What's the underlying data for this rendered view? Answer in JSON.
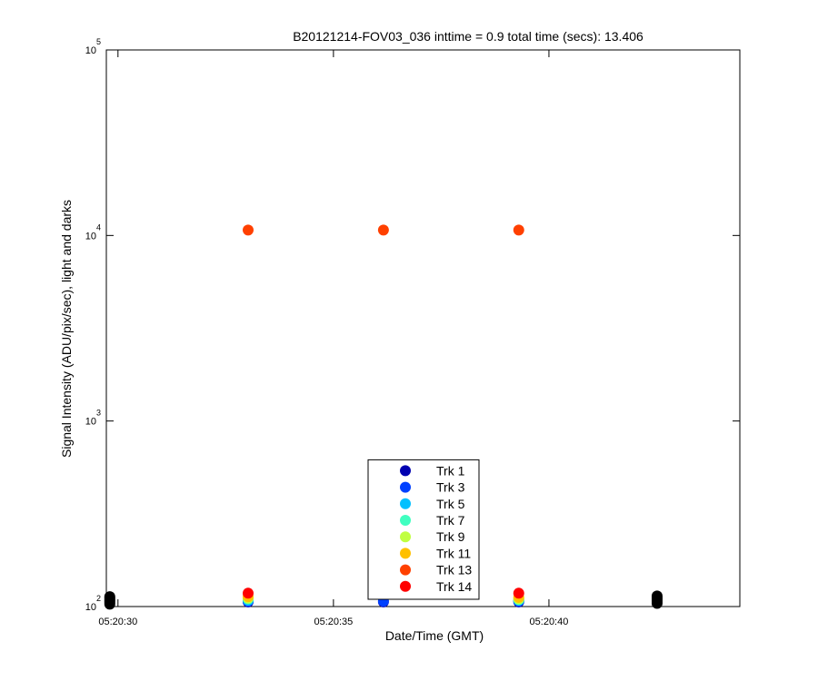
{
  "chart_data": {
    "type": "scatter",
    "title": "B20121214-FOV03_036 inttime = 0.9 total time (secs): 13.406",
    "xlabel": "Date/Time (GMT)",
    "ylabel": "Signal Intensity (ADU/pix/sec), light and darks",
    "log_y": true,
    "legend": "bottom-center",
    "xlim": [
      29.73,
      44.43
    ],
    "xticks": [
      {
        "value": 30,
        "label": "05:20:30"
      },
      {
        "value": 35,
        "label": "05:20:35"
      },
      {
        "value": 40,
        "label": "05:20:40"
      }
    ],
    "ylim": [
      100,
      100000
    ],
    "yticks": [
      {
        "value": 100,
        "label": "10",
        "exponent": "2"
      },
      {
        "value": 1000,
        "label": "10",
        "exponent": "3"
      },
      {
        "value": 10000,
        "label": "10",
        "exponent": "4"
      },
      {
        "value": 100000,
        "label": "10",
        "exponent": "5"
      }
    ],
    "x": [
      29.81,
      33.02,
      36.16,
      39.3,
      42.51
    ],
    "series": [
      {
        "name": "Trk 1",
        "color": "#0000b0",
        "values": [
          null,
          106,
          106,
          106,
          null
        ]
      },
      {
        "name": "Trk 3",
        "color": "#0040ff",
        "values": [
          null,
          107,
          107,
          107,
          null
        ]
      },
      {
        "name": "Trk 5",
        "color": "#00c0ff",
        "values": [
          null,
          108,
          null,
          108,
          null
        ]
      },
      {
        "name": "Trk 7",
        "color": "#40ffc0",
        "values": [
          null,
          110,
          null,
          109,
          null
        ]
      },
      {
        "name": "Trk 9",
        "color": "#c0ff40",
        "values": [
          null,
          111,
          null,
          110,
          null
        ]
      },
      {
        "name": "Trk 11",
        "color": "#ffc000",
        "values": [
          null,
          113,
          null,
          112,
          null
        ]
      },
      {
        "name": "Trk 13",
        "color": "#ff4000",
        "values": [
          null,
          10700,
          10700,
          10700,
          null
        ]
      },
      {
        "name": "Trk 14",
        "color": "#ff0000",
        "values": [
          null,
          118,
          null,
          118,
          null
        ]
      }
    ],
    "darks": {
      "color": "#000000",
      "x": [
        29.81,
        29.81,
        29.81,
        29.81,
        29.81,
        29.81,
        42.51,
        42.51,
        42.51,
        42.51,
        42.51,
        42.51
      ],
      "values": [
        103,
        105,
        107,
        109,
        111,
        113,
        104,
        106,
        108,
        110,
        112,
        114
      ]
    }
  }
}
